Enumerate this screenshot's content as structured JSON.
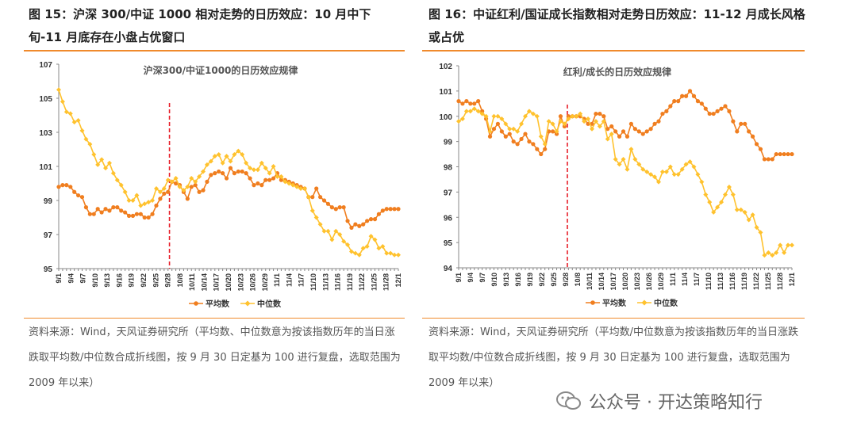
{
  "left": {
    "title": "图 15：沪深 300/中证 1000 相对走势的日历效应：10 月中下旬-11 月底存在小盘占优窗口",
    "source": "资料来源：Wind，天风证券研究所（平均数、中位数意为按该指数历年的当日涨跌取平均数/中位数合成折线图，按 9 月 30 日定基为 100 进行复盘，选取范围为 2009 年以来）"
  },
  "right": {
    "title": "图 16：中证红利/国证成长指数相对走势日历效应：11-12 月成长风格或占优",
    "source": "资料来源：Wind，天风证券研究所（平均数/中位数意为按该指数历年的当日涨跌取平均数/中位数合成折线图，按 9 月 30 日定基为 100 进行复盘，选取范围为 2009 年以来）"
  },
  "watermark": "公众号 · 开达策略知行",
  "colors": {
    "mean": "#F07E1F",
    "median": "#FFC22E",
    "divider": "#E8202A",
    "rule": "#F08A2C"
  },
  "chart_data": [
    {
      "type": "line",
      "title": "沪深300/中证1000的日历效应规律",
      "ylim": [
        95,
        107
      ],
      "yticks": [
        95,
        97,
        99,
        101,
        103,
        105,
        107
      ],
      "xticks": [
        "9/1",
        "9/4",
        "9/7",
        "9/10",
        "9/13",
        "9/16",
        "9/19",
        "9/22",
        "9/25",
        "9/28",
        "10/8",
        "10/11",
        "10/14",
        "10/17",
        "10/20",
        "10/23",
        "10/26",
        "10/29",
        "11/1",
        "11/4",
        "11/7",
        "11/10",
        "11/13",
        "11/16",
        "11/19",
        "11/22",
        "11/25",
        "11/28",
        "12/1"
      ],
      "divider_at": "9/28",
      "legend": "bottom",
      "series": [
        {
          "name": "平均数",
          "marker": "circle",
          "values": [
            99.8,
            99.9,
            99.9,
            99.8,
            99.5,
            99.3,
            99.2,
            98.6,
            98.2,
            98.2,
            98.5,
            98.3,
            98.5,
            98.4,
            98.6,
            98.6,
            98.4,
            98.3,
            98.1,
            98.1,
            98.2,
            98.2,
            98.0,
            98.0,
            98.2,
            98.7,
            99.1,
            99.4,
            99.5,
            100.1,
            100.0,
            99.9,
            99.5,
            99.1,
            99.8,
            99.9,
            99.5,
            99.6,
            100.1,
            100.5,
            100.6,
            100.7,
            100.6,
            100.3,
            100.9,
            100.6,
            100.7,
            100.7,
            100.6,
            100.3,
            99.9,
            100.0,
            99.9,
            100.2,
            100.2,
            100.3,
            100.6,
            100.2,
            100.2,
            100.1,
            100.0,
            99.9,
            99.8,
            99.7,
            99.2,
            99.2,
            99.7,
            99.2,
            99.0,
            98.8,
            98.6,
            98.5,
            98.6,
            98.6,
            97.8,
            97.4,
            97.6,
            97.5,
            97.6,
            97.8,
            97.9,
            97.9,
            98.2,
            98.4,
            98.5,
            98.5,
            98.5,
            98.5
          ]
        },
        {
          "name": "中位数",
          "marker": "diamond",
          "values": [
            105.5,
            104.8,
            104.2,
            104.1,
            103.6,
            103.7,
            103.1,
            102.6,
            102.3,
            101.7,
            101.1,
            101.4,
            100.9,
            101.2,
            100.6,
            100.2,
            99.9,
            99.5,
            99.0,
            99.0,
            99.3,
            98.7,
            98.8,
            98.9,
            99.0,
            99.7,
            99.5,
            99.7,
            100.2,
            100.1,
            100.3,
            99.8,
            99.6,
            99.8,
            100.3,
            100.1,
            100.4,
            100.7,
            101.1,
            101.3,
            101.6,
            101.7,
            101.2,
            101.6,
            101.3,
            101.7,
            101.9,
            101.7,
            101.2,
            100.9,
            100.8,
            100.8,
            101.2,
            100.9,
            100.6,
            101.0,
            100.4,
            100.4,
            100.1,
            100.0,
            99.9,
            99.8,
            99.7,
            99.7,
            99.2,
            98.4,
            98.0,
            97.6,
            97.2,
            97.2,
            96.7,
            97.2,
            97.0,
            96.6,
            96.4,
            96.0,
            95.9,
            95.8,
            96.2,
            96.3,
            96.9,
            96.7,
            96.2,
            96.3,
            95.9,
            95.9,
            95.8,
            95.8
          ]
        }
      ]
    },
    {
      "type": "line",
      "title": "红利/成长的日历效应规律",
      "ylim": [
        94,
        102
      ],
      "yticks": [
        94,
        95,
        96,
        97,
        98,
        99,
        100,
        101,
        102
      ],
      "xticks": [
        "9/1",
        "9/4",
        "9/7",
        "9/10",
        "9/13",
        "9/16",
        "9/19",
        "9/22",
        "9/25",
        "9/28",
        "10/8",
        "10/11",
        "10/14",
        "10/17",
        "10/20",
        "10/23",
        "10/26",
        "10/29",
        "11/1",
        "11/4",
        "11/7",
        "11/10",
        "11/13",
        "11/16",
        "11/19",
        "11/22",
        "11/25",
        "11/28",
        "12/1"
      ],
      "divider_at": "9/28",
      "legend": "bottom",
      "series": [
        {
          "name": "平均数",
          "marker": "circle",
          "values": [
            100.6,
            100.5,
            100.6,
            100.5,
            100.5,
            100.6,
            100.2,
            99.9,
            99.2,
            99.5,
            99.7,
            99.4,
            99.2,
            99.3,
            99.0,
            98.9,
            99.1,
            99.3,
            99.0,
            98.9,
            98.7,
            98.5,
            98.7,
            99.4,
            99.4,
            99.3,
            100.0,
            99.6,
            100.0,
            100.0,
            100.0,
            100.0,
            99.9,
            99.7,
            99.7,
            100.1,
            100.1,
            100.0,
            99.5,
            99.6,
            99.4,
            99.2,
            99.4,
            99.2,
            99.7,
            99.5,
            99.4,
            99.3,
            99.4,
            99.5,
            99.7,
            99.8,
            100.1,
            100.2,
            100.4,
            100.6,
            100.6,
            100.8,
            100.8,
            101.0,
            100.8,
            100.6,
            100.5,
            100.3,
            100.1,
            100.1,
            100.2,
            100.3,
            100.4,
            100.2,
            99.8,
            99.4,
            99.7,
            99.7,
            99.4,
            99.2,
            98.9,
            98.7,
            98.3,
            98.3,
            98.3,
            98.5,
            98.5,
            98.5,
            98.5,
            98.5
          ]
        },
        {
          "name": "中位数",
          "marker": "diamond",
          "values": [
            99.8,
            99.9,
            100.2,
            100.2,
            100.3,
            100.2,
            100.1,
            100.0,
            99.4,
            100.0,
            100.0,
            99.9,
            99.7,
            99.5,
            99.5,
            99.4,
            99.7,
            100.0,
            100.2,
            100.1,
            100.0,
            99.2,
            98.9,
            99.8,
            99.7,
            99.4,
            99.8,
            99.7,
            99.9,
            100.0,
            100.0,
            100.1,
            99.8,
            99.9,
            99.5,
            99.8,
            99.6,
            99.8,
            99.1,
            99.3,
            98.3,
            98.1,
            98.3,
            97.9,
            98.7,
            98.3,
            98.1,
            97.9,
            97.8,
            97.7,
            97.6,
            97.4,
            97.8,
            97.8,
            98.0,
            97.7,
            97.7,
            97.9,
            98.1,
            98.2,
            98.0,
            97.7,
            97.4,
            96.9,
            96.6,
            96.2,
            96.4,
            96.6,
            96.9,
            97.2,
            96.9,
            96.3,
            96.3,
            96.2,
            95.9,
            96.1,
            95.6,
            95.4,
            94.5,
            94.6,
            94.5,
            94.6,
            94.9,
            94.6,
            94.9,
            94.9
          ]
        }
      ]
    }
  ]
}
